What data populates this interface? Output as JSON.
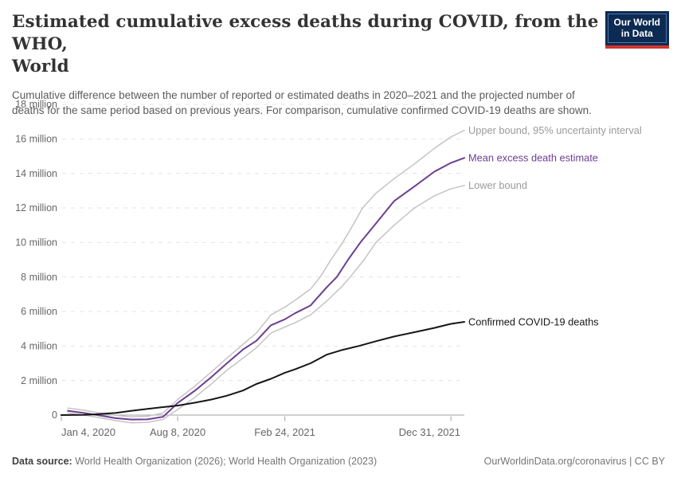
{
  "header": {
    "title_line1": "Estimated cumulative excess deaths during COVID, from the WHO,",
    "title_line2": "World",
    "subtitle": "Cumulative difference between the number of reported or estimated deaths in 2020–2021 and the projected number of deaths for the same period based on previous years. For comparison, cumulative confirmed COVID-19 deaths are shown.",
    "logo": {
      "line1": "Our World",
      "line2": "in Data"
    }
  },
  "footer": {
    "datasource_label": "Data source:",
    "datasource_value": " World Health Organization (2026); World Health Organization (2023)",
    "credit": "OurWorldinData.org/coronavirus | CC BY"
  },
  "colors": {
    "mean_line": "#6d3e91",
    "bound_line": "#c4c4c4",
    "bound_label": "#9b9b9b",
    "confirmed_line": "#161616",
    "gridline": "#e3e3e3",
    "axis_line": "#a3a3a3",
    "tick_label": "#666666",
    "logo_bg": "#0d2a52",
    "logo_red": "#d0342c"
  },
  "chart_data": {
    "type": "line",
    "title": "Estimated cumulative excess deaths during COVID, from the WHO, World",
    "unit": "million deaths",
    "grid": true,
    "legend_position": "labels-at-line-ends",
    "x_axis": {
      "start": "2020-01-04",
      "end": "2022-01-25",
      "ticks": [
        {
          "date": "2020-01-04",
          "label": "Jan 4, 2020",
          "align": "start"
        },
        {
          "date": "2020-08-08",
          "label": "Aug 8, 2020",
          "align": "middle"
        },
        {
          "date": "2021-02-24",
          "label": "Feb 24, 2021",
          "align": "middle"
        },
        {
          "date": "2021-12-31",
          "label": "Dec 31, 2021",
          "align": "end"
        }
      ]
    },
    "y_axis": {
      "min": -0.6,
      "max": 18,
      "grid_step": 2,
      "unit": "million",
      "tick_labels": [
        "0",
        "2 million",
        "4 million",
        "6 million",
        "8 million",
        "10 million",
        "12 million",
        "14 million",
        "16 million",
        "18 million"
      ]
    },
    "series": [
      {
        "name": "Upper bound, 95% uncertainty interval",
        "color": "#c4c4c4",
        "label_color": "#9b9b9b",
        "width": 1.5,
        "points": [
          [
            "2020-01-16",
            0.4
          ],
          [
            "2020-02-15",
            0.28
          ],
          [
            "2020-03-15",
            0.12
          ],
          [
            "2020-04-14",
            -0.02
          ],
          [
            "2020-05-14",
            -0.1
          ],
          [
            "2020-06-13",
            -0.07
          ],
          [
            "2020-07-12",
            0.12
          ],
          [
            "2020-08-08",
            0.9
          ],
          [
            "2020-09-10",
            1.7
          ],
          [
            "2020-10-10",
            2.5
          ],
          [
            "2020-11-08",
            3.3
          ],
          [
            "2020-12-08",
            4.1
          ],
          [
            "2021-01-02",
            4.75
          ],
          [
            "2021-01-29",
            5.8
          ],
          [
            "2021-02-24",
            6.25
          ],
          [
            "2021-03-15",
            6.65
          ],
          [
            "2021-04-13",
            7.3
          ],
          [
            "2021-05-01",
            8.0
          ],
          [
            "2021-05-21",
            9.0
          ],
          [
            "2021-06-12",
            10.0
          ],
          [
            "2021-07-01",
            11.0
          ],
          [
            "2021-07-19",
            12.0
          ],
          [
            "2021-08-13",
            12.85
          ],
          [
            "2021-09-16",
            13.7
          ],
          [
            "2021-10-24",
            14.55
          ],
          [
            "2021-11-30",
            15.45
          ],
          [
            "2021-12-30",
            16.1
          ],
          [
            "2022-01-25",
            16.5
          ]
        ]
      },
      {
        "name": "Lower bound",
        "color": "#c4c4c4",
        "label_color": "#9b9b9b",
        "width": 1.5,
        "points": [
          [
            "2020-01-16",
            0.12
          ],
          [
            "2020-02-15",
            0.0
          ],
          [
            "2020-03-15",
            -0.15
          ],
          [
            "2020-04-14",
            -0.32
          ],
          [
            "2020-05-14",
            -0.45
          ],
          [
            "2020-06-13",
            -0.42
          ],
          [
            "2020-07-12",
            -0.25
          ],
          [
            "2020-08-08",
            0.32
          ],
          [
            "2020-09-10",
            1.05
          ],
          [
            "2020-10-10",
            1.8
          ],
          [
            "2020-11-08",
            2.6
          ],
          [
            "2020-12-08",
            3.3
          ],
          [
            "2021-01-02",
            3.9
          ],
          [
            "2021-01-29",
            4.75
          ],
          [
            "2021-02-24",
            5.1
          ],
          [
            "2021-03-15",
            5.35
          ],
          [
            "2021-04-13",
            5.8
          ],
          [
            "2021-05-13",
            6.6
          ],
          [
            "2021-06-09",
            7.4
          ],
          [
            "2021-06-26",
            8.0
          ],
          [
            "2021-07-22",
            9.0
          ],
          [
            "2021-08-13",
            10.0
          ],
          [
            "2021-09-16",
            11.0
          ],
          [
            "2021-10-24",
            12.0
          ],
          [
            "2021-11-30",
            12.7
          ],
          [
            "2021-12-30",
            13.1
          ],
          [
            "2022-01-25",
            13.3
          ]
        ]
      },
      {
        "name": "Mean excess death estimate",
        "color": "#6d3e91",
        "label_color": "#6d3e91",
        "width": 2,
        "points": [
          [
            "2020-01-16",
            0.25
          ],
          [
            "2020-02-15",
            0.12
          ],
          [
            "2020-03-15",
            -0.02
          ],
          [
            "2020-04-14",
            -0.18
          ],
          [
            "2020-05-14",
            -0.26
          ],
          [
            "2020-06-13",
            -0.25
          ],
          [
            "2020-07-12",
            -0.1
          ],
          [
            "2020-07-24",
            0.25
          ],
          [
            "2020-08-08",
            0.7
          ],
          [
            "2020-09-10",
            1.43
          ],
          [
            "2020-10-10",
            2.2
          ],
          [
            "2020-11-08",
            3.0
          ],
          [
            "2020-12-08",
            3.8
          ],
          [
            "2021-01-02",
            4.3
          ],
          [
            "2021-01-29",
            5.2
          ],
          [
            "2021-02-24",
            5.55
          ],
          [
            "2021-03-15",
            5.9
          ],
          [
            "2021-04-13",
            6.35
          ],
          [
            "2021-05-13",
            7.4
          ],
          [
            "2021-06-01",
            8.0
          ],
          [
            "2021-06-22",
            9.0
          ],
          [
            "2021-07-15",
            10.0
          ],
          [
            "2021-08-13",
            11.1
          ],
          [
            "2021-09-16",
            12.4
          ],
          [
            "2021-10-24",
            13.25
          ],
          [
            "2021-11-30",
            14.1
          ],
          [
            "2021-12-30",
            14.6
          ],
          [
            "2022-01-25",
            14.9
          ]
        ]
      },
      {
        "name": "Confirmed COVID-19 deaths",
        "color": "#161616",
        "label_color": "#161616",
        "width": 2,
        "points": [
          [
            "2020-01-04",
            0.0
          ],
          [
            "2020-02-15",
            0.01
          ],
          [
            "2020-03-15",
            0.06
          ],
          [
            "2020-04-14",
            0.12
          ],
          [
            "2020-05-14",
            0.25
          ],
          [
            "2020-06-13",
            0.36
          ],
          [
            "2020-07-12",
            0.46
          ],
          [
            "2020-08-08",
            0.55
          ],
          [
            "2020-09-10",
            0.72
          ],
          [
            "2020-10-10",
            0.9
          ],
          [
            "2020-11-08",
            1.12
          ],
          [
            "2020-12-08",
            1.42
          ],
          [
            "2021-01-02",
            1.8
          ],
          [
            "2021-01-29",
            2.1
          ],
          [
            "2021-02-24",
            2.45
          ],
          [
            "2021-03-15",
            2.65
          ],
          [
            "2021-04-13",
            3.0
          ],
          [
            "2021-05-13",
            3.5
          ],
          [
            "2021-06-12",
            3.78
          ],
          [
            "2021-07-12",
            4.0
          ],
          [
            "2021-08-13",
            4.28
          ],
          [
            "2021-09-16",
            4.55
          ],
          [
            "2021-10-24",
            4.8
          ],
          [
            "2021-11-30",
            5.05
          ],
          [
            "2021-12-30",
            5.28
          ],
          [
            "2022-01-25",
            5.4
          ]
        ]
      }
    ]
  }
}
